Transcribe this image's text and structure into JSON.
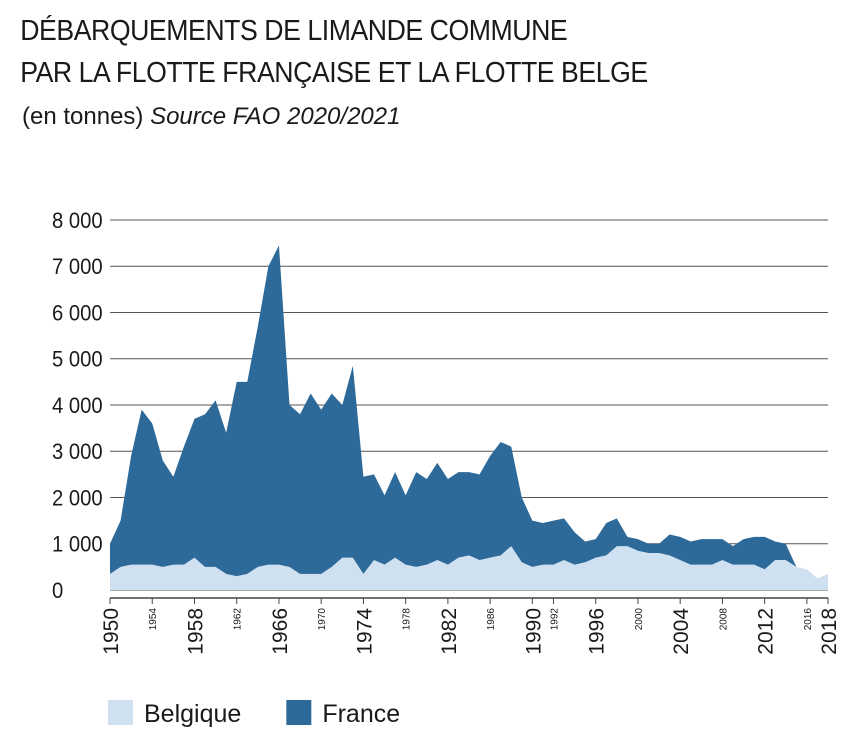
{
  "chart_data": {
    "type": "area",
    "stacked": false,
    "title": [
      "DÉBARQUEMENTS DE LIMANDE COMMUNE",
      "PAR LA FLOTTE FRANÇAISE ET LA FLOTTE BELGE"
    ],
    "subtitle": "(en tonnes)",
    "source": "Source FAO 2020/2021",
    "x": [
      1950,
      1951,
      1952,
      1953,
      1954,
      1955,
      1956,
      1957,
      1958,
      1959,
      1960,
      1961,
      1962,
      1963,
      1964,
      1965,
      1966,
      1967,
      1968,
      1969,
      1970,
      1971,
      1972,
      1973,
      1974,
      1975,
      1976,
      1977,
      1978,
      1979,
      1980,
      1981,
      1982,
      1983,
      1984,
      1985,
      1986,
      1987,
      1988,
      1989,
      1990,
      1991,
      1992,
      1993,
      1994,
      1995,
      1996,
      1997,
      1998,
      1999,
      2000,
      2001,
      2002,
      2003,
      2004,
      2005,
      2006,
      2007,
      2008,
      2009,
      2010,
      2011,
      2012,
      2013,
      2014,
      2015,
      2016,
      2017,
      2018
    ],
    "series": [
      {
        "name": "France",
        "color": "#2e6a99",
        "values": [
          1000,
          1500,
          2900,
          3900,
          3600,
          2800,
          2450,
          3100,
          3700,
          3800,
          4100,
          3400,
          4500,
          4500,
          5700,
          7000,
          7450,
          4000,
          3800,
          4250,
          3900,
          4250,
          4000,
          4850,
          2450,
          2500,
          2050,
          2550,
          2050,
          2550,
          2400,
          2750,
          2400,
          2550,
          2550,
          2500,
          2900,
          3200,
          3100,
          2000,
          1500,
          1450,
          1500,
          1550,
          1250,
          1050,
          1100,
          1450,
          1550,
          1150,
          1100,
          1000,
          1000,
          1200,
          1150,
          1050,
          1100,
          1100,
          1100,
          950,
          1100,
          1150,
          1150,
          1050,
          1000,
          500,
          350,
          null,
          null
        ]
      },
      {
        "name": "Belgique",
        "color": "#cfe0f1",
        "values": [
          350,
          500,
          550,
          550,
          550,
          500,
          550,
          550,
          700,
          500,
          500,
          350,
          300,
          350,
          500,
          550,
          550,
          500,
          350,
          350,
          350,
          500,
          700,
          700,
          350,
          650,
          550,
          700,
          550,
          500,
          550,
          650,
          550,
          700,
          750,
          650,
          700,
          750,
          950,
          600,
          500,
          550,
          550,
          650,
          550,
          600,
          700,
          750,
          950,
          950,
          850,
          800,
          800,
          750,
          650,
          550,
          550,
          550,
          650,
          550,
          550,
          550,
          450,
          650,
          650,
          500,
          450,
          250,
          350
        ]
      }
    ],
    "legend_order": [
      1,
      0
    ],
    "xlim": [
      1950,
      2018
    ],
    "xticks": [
      1950,
      1958,
      1966,
      1974,
      1982,
      1990,
      1996,
      2004,
      2012,
      2018
    ],
    "xticks_minor": [
      1954,
      1962,
      1970,
      1978,
      1986,
      1992,
      2000,
      2008,
      2016
    ],
    "ylim": [
      0,
      8000
    ],
    "yticks": [
      0,
      {
        "value": 1000,
        "label": "1 000"
      },
      {
        "value": 2000,
        "label": "2 000"
      },
      {
        "value": 3000,
        "label": "3 000"
      },
      {
        "value": 4000,
        "label": "4 000"
      },
      {
        "value": 5000,
        "label": "5 000"
      },
      {
        "value": 6000,
        "label": "6 000"
      },
      {
        "value": 7000,
        "label": "7 000"
      },
      {
        "value": 8000,
        "label": "8 000"
      }
    ],
    "grid": true
  }
}
